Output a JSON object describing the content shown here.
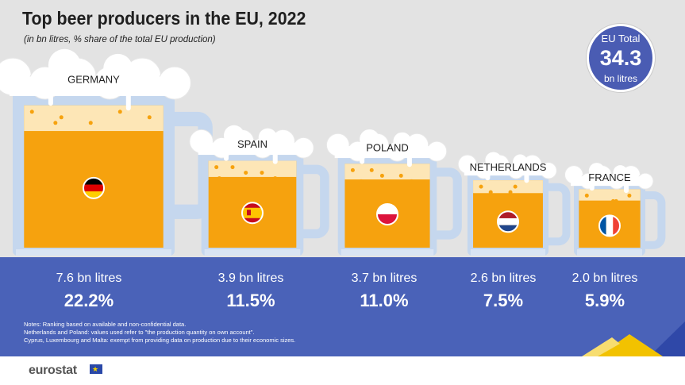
{
  "title": "Top beer producers in the EU, 2022",
  "subtitle": "(in bn litres, % share of the total EU production)",
  "total": {
    "label": "EU Total",
    "value": "34.3",
    "unit": "bn litres"
  },
  "chart_data": {
    "type": "bar",
    "categories": [
      "GERMANY",
      "SPAIN",
      "POLAND",
      "NETHERLANDS",
      "FRANCE"
    ],
    "values": [
      7.6,
      3.9,
      3.7,
      2.6,
      2.0
    ],
    "shares_percent": [
      22.2,
      11.5,
      11.0,
      7.5,
      5.9
    ],
    "volume_labels": [
      "7.6 bn litres",
      "3.9 bn litres",
      "3.7 bn litres",
      "2.6 bn litres",
      "2.0 bn litres"
    ],
    "share_labels": [
      "22.2%",
      "11.5%",
      "11.0%",
      "7.5%",
      "5.9%"
    ],
    "flags": [
      "germany-flag",
      "spain-flag",
      "poland-flag",
      "netherlands-flag",
      "france-flag"
    ]
  },
  "notes": [
    "Notes: Ranking based on available and non-confidential data.",
    "Netherlands and Poland: values used refer to \"the production quantity on own account\".",
    "Cyprus, Luxembourg and Malta: exempt from providing data on production due to their economic sizes."
  ],
  "brand": "eurostat",
  "colors": {
    "beer": "#f6a20e",
    "glass": "#c5d7ee",
    "band": "#4a62b8",
    "circle": "#4a5cb3",
    "foam": "#ffffff"
  }
}
